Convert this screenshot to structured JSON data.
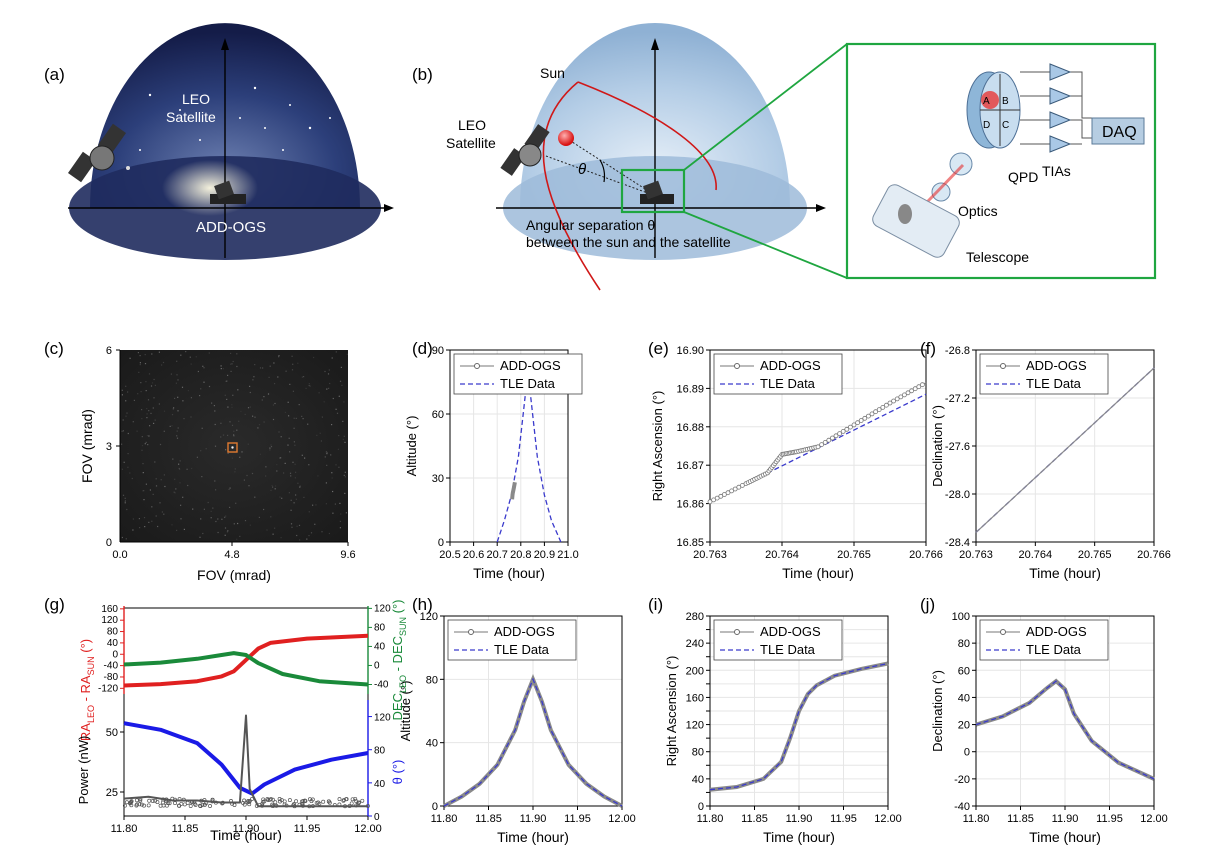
{
  "panels": {
    "a": {
      "tag": "(a)",
      "satellite_label_1": "LEO",
      "satellite_label_2": "Satellite",
      "station_label": "ADD-OGS"
    },
    "b": {
      "tag": "(b)",
      "sun_label": "Sun",
      "satellite_label_1": "LEO",
      "satellite_label_2": "Satellite",
      "theta_label": "θ",
      "caption_line1": "Angular separation θ",
      "caption_line2": "between the sun and the satellite",
      "inset": {
        "daq": "DAQ",
        "qpd": "QPD",
        "tias": "TIAs",
        "optics": "Optics",
        "telescope": "Telescope",
        "quadrants": [
          "A",
          "B",
          "C",
          "D"
        ]
      }
    },
    "c": {
      "tag": "(c)",
      "xlabel": "FOV (mrad)",
      "ylabel": "FOV (mrad)",
      "xticks": [
        "0.0",
        "4.8",
        "9.6"
      ],
      "yticks": [
        "0",
        "3",
        "6"
      ]
    },
    "g": {
      "tag": "(g)",
      "ylabel_ra": "RA",
      "ylabel_ra_sub1": "LEO",
      "ylabel_ra_mid": " - RA",
      "ylabel_ra_sub2": "SUN",
      "ylabel_ra_unit": " (°)",
      "ylabel_dec": "DEC",
      "ylabel_dec_sub1": "LEO",
      "ylabel_dec_mid": " - DEC",
      "ylabel_dec_sub2": "SUN",
      "ylabel_dec_unit": " (°)",
      "ylabel_power": "Power (nW)",
      "ylabel_theta": "θ (°)",
      "xlabel": "Time (hour)",
      "xticks": [
        "11.80",
        "11.85",
        "11.90",
        "11.95",
        "12.00"
      ],
      "ra_ticks": [
        "160",
        "120",
        "80",
        "40",
        "0",
        "-40",
        "-80",
        "-120"
      ],
      "dec_ticks": [
        "120",
        "80",
        "40",
        "0",
        "-40"
      ],
      "power_ticks": [
        "50",
        "25"
      ],
      "theta_ticks": [
        "120",
        "80",
        "40",
        "0"
      ],
      "colors": {
        "ra": "#e02020",
        "dec": "#1a8a3a",
        "theta": "#1a1ae6",
        "power": "#555555"
      }
    }
  },
  "legend": {
    "measured": "ADD-OGS",
    "reference": "TLE Data"
  },
  "chart_data": [
    {
      "id": "d",
      "tag": "(d)",
      "type": "line",
      "xlabel": "Time (hour)",
      "ylabel": "Altitude (°)",
      "xlim": [
        20.5,
        21.0
      ],
      "ylim": [
        0,
        90
      ],
      "xticks": [
        "20.5",
        "20.6",
        "20.7",
        "20.8",
        "20.9",
        "21.0"
      ],
      "yticks": [
        "0",
        "30",
        "60",
        "90"
      ],
      "series": [
        {
          "name": "TLE Data",
          "x": [
            20.7,
            20.73,
            20.76,
            20.79,
            20.81,
            20.83,
            20.85,
            20.87,
            20.9,
            20.93,
            20.97
          ],
          "y": [
            0,
            10,
            22,
            40,
            60,
            80,
            60,
            40,
            22,
            10,
            0
          ]
        },
        {
          "name": "ADD-OGS",
          "x": [
            20.763,
            20.764,
            20.765,
            20.766,
            20.77,
            20.775
          ],
          "y": [
            20,
            21,
            22,
            23,
            25,
            28
          ]
        }
      ]
    },
    {
      "id": "e",
      "tag": "(e)",
      "type": "line",
      "xlabel": "Time (hour)",
      "ylabel": "Right Ascension (°)",
      "xlim": [
        20.763,
        20.766
      ],
      "ylim": [
        16.85,
        16.9
      ],
      "xticks": [
        "20.763",
        "20.764",
        "20.765",
        "20.766"
      ],
      "yticks": [
        "16.85",
        "16.86",
        "16.87",
        "16.88",
        "16.89",
        "16.90"
      ],
      "series": [
        {
          "name": "TLE Data",
          "x": [
            20.763,
            20.766
          ],
          "y": [
            16.8605,
            16.8885
          ]
        },
        {
          "name": "ADD-OGS",
          "x": [
            20.763,
            20.7635,
            20.7638,
            20.764,
            20.7642,
            20.7645,
            20.765,
            20.7655,
            20.766
          ],
          "y": [
            16.8605,
            16.8652,
            16.868,
            16.8728,
            16.8735,
            16.8748,
            16.8805,
            16.8862,
            16.8915
          ]
        }
      ]
    },
    {
      "id": "f",
      "tag": "(f)",
      "type": "line",
      "xlabel": "Time (hour)",
      "ylabel": "Declination (°)",
      "xlim": [
        20.763,
        20.766
      ],
      "ylim": [
        -28.4,
        -26.8
      ],
      "xticks": [
        "20.763",
        "20.764",
        "20.765",
        "20.766"
      ],
      "yticks": [
        "-26.8",
        "-27.2",
        "-27.6",
        "-28.0",
        "-28.4"
      ],
      "series": [
        {
          "name": "TLE Data",
          "x": [
            20.763,
            20.766
          ],
          "y": [
            -28.32,
            -26.95
          ]
        },
        {
          "name": "ADD-OGS",
          "x": [
            20.763,
            20.766
          ],
          "y": [
            -28.32,
            -26.95
          ]
        }
      ]
    },
    {
      "id": "g",
      "tag": "(g)",
      "type": "line",
      "xlabel": "Time (hour)",
      "xlim": [
        11.8,
        12.0
      ],
      "series": [
        {
          "name": "RA_LEO - RA_SUN",
          "axis": "ra",
          "ylim": [
            -160,
            160
          ],
          "x": [
            11.8,
            11.83,
            11.86,
            11.88,
            11.89,
            11.9,
            11.91,
            11.92,
            11.95,
            12.0
          ],
          "y": [
            -110,
            -105,
            -95,
            -78,
            -60,
            -20,
            20,
            40,
            55,
            65
          ]
        },
        {
          "name": "DEC_LEO - DEC_SUN",
          "axis": "dec",
          "ylim": [
            -80,
            120
          ],
          "x": [
            11.8,
            11.83,
            11.86,
            11.88,
            11.89,
            11.9,
            11.91,
            11.93,
            11.96,
            12.0
          ],
          "y": [
            2,
            6,
            14,
            22,
            26,
            22,
            5,
            -18,
            -33,
            -40
          ]
        },
        {
          "name": "θ",
          "axis": "theta",
          "ylim": [
            0,
            140
          ],
          "x": [
            11.8,
            11.83,
            11.86,
            11.88,
            11.895,
            11.905,
            11.915,
            11.94,
            11.97,
            12.0
          ],
          "y": [
            112,
            104,
            88,
            62,
            34,
            27,
            38,
            56,
            68,
            76
          ]
        },
        {
          "name": "Power (nW)",
          "axis": "power",
          "ylim": [
            22,
            80
          ],
          "x": [
            11.8,
            11.82,
            11.84,
            11.86,
            11.88,
            11.895,
            11.9,
            11.903,
            11.91,
            11.93,
            11.96,
            12.0
          ],
          "y": [
            29,
            30,
            28,
            28,
            27,
            27,
            72,
            34,
            25,
            25,
            25,
            25
          ]
        }
      ]
    },
    {
      "id": "h",
      "tag": "(h)",
      "type": "line",
      "xlabel": "Time (hour)",
      "ylabel": "Altitude (°)",
      "xlim": [
        11.8,
        12.0
      ],
      "ylim": [
        0,
        120
      ],
      "xticks": [
        "11.80",
        "11.85",
        "11.90",
        "11.95",
        "12.00"
      ],
      "yticks": [
        "0",
        "40",
        "80",
        "120"
      ],
      "series": [
        {
          "name": "ADD-OGS",
          "x": [
            11.8,
            11.82,
            11.84,
            11.86,
            11.88,
            11.89,
            11.9,
            11.91,
            11.92,
            11.94,
            11.96,
            11.98,
            12.0
          ],
          "y": [
            0,
            6,
            14,
            26,
            48,
            66,
            80,
            66,
            48,
            26,
            14,
            6,
            0
          ]
        },
        {
          "name": "TLE Data",
          "x": [
            11.8,
            11.82,
            11.84,
            11.86,
            11.88,
            11.89,
            11.9,
            11.91,
            11.92,
            11.94,
            11.96,
            11.98,
            12.0
          ],
          "y": [
            0,
            6,
            14,
            26,
            48,
            66,
            80,
            66,
            48,
            26,
            14,
            6,
            0
          ]
        }
      ]
    },
    {
      "id": "i",
      "tag": "(i)",
      "type": "line",
      "xlabel": "Time (hour)",
      "ylabel": "Right Ascension (°)",
      "xlim": [
        11.8,
        12.0
      ],
      "ylim": [
        0,
        280
      ],
      "xticks": [
        "11.80",
        "11.85",
        "11.90",
        "11.95",
        "12.00"
      ],
      "yticks": [
        "0",
        "20",
        "40",
        "60",
        "80",
        "100",
        "120",
        "140",
        "160",
        "180",
        "200",
        "220",
        "240",
        "260",
        "280"
      ],
      "series": [
        {
          "name": "ADD-OGS",
          "x": [
            11.8,
            11.83,
            11.86,
            11.88,
            11.89,
            11.9,
            11.91,
            11.92,
            11.94,
            11.97,
            12.0
          ],
          "y": [
            24,
            28,
            40,
            65,
            100,
            140,
            165,
            178,
            192,
            202,
            210
          ]
        },
        {
          "name": "TLE Data",
          "x": [
            11.8,
            11.83,
            11.86,
            11.88,
            11.89,
            11.9,
            11.91,
            11.92,
            11.94,
            11.97,
            12.0
          ],
          "y": [
            24,
            28,
            40,
            65,
            100,
            140,
            165,
            178,
            192,
            202,
            210
          ]
        }
      ]
    },
    {
      "id": "j",
      "tag": "(j)",
      "type": "line",
      "xlabel": "Time (hour)",
      "ylabel": "Declination (°)",
      "xlim": [
        11.8,
        12.0
      ],
      "ylim": [
        -40,
        100
      ],
      "xticks": [
        "11.80",
        "11.85",
        "11.90",
        "11.95",
        "12.00"
      ],
      "yticks": [
        "-40",
        "-20",
        "0",
        "20",
        "40",
        "60",
        "80",
        "100"
      ],
      "series": [
        {
          "name": "ADD-OGS",
          "x": [
            11.8,
            11.83,
            11.86,
            11.88,
            11.89,
            11.9,
            11.91,
            11.93,
            11.96,
            12.0
          ],
          "y": [
            20,
            26,
            36,
            47,
            52,
            46,
            28,
            8,
            -8,
            -20
          ]
        },
        {
          "name": "TLE Data",
          "x": [
            11.8,
            11.83,
            11.86,
            11.88,
            11.89,
            11.9,
            11.91,
            11.93,
            11.96,
            12.0
          ],
          "y": [
            20,
            26,
            36,
            47,
            52,
            46,
            28,
            8,
            -8,
            -20
          ]
        }
      ]
    }
  ]
}
